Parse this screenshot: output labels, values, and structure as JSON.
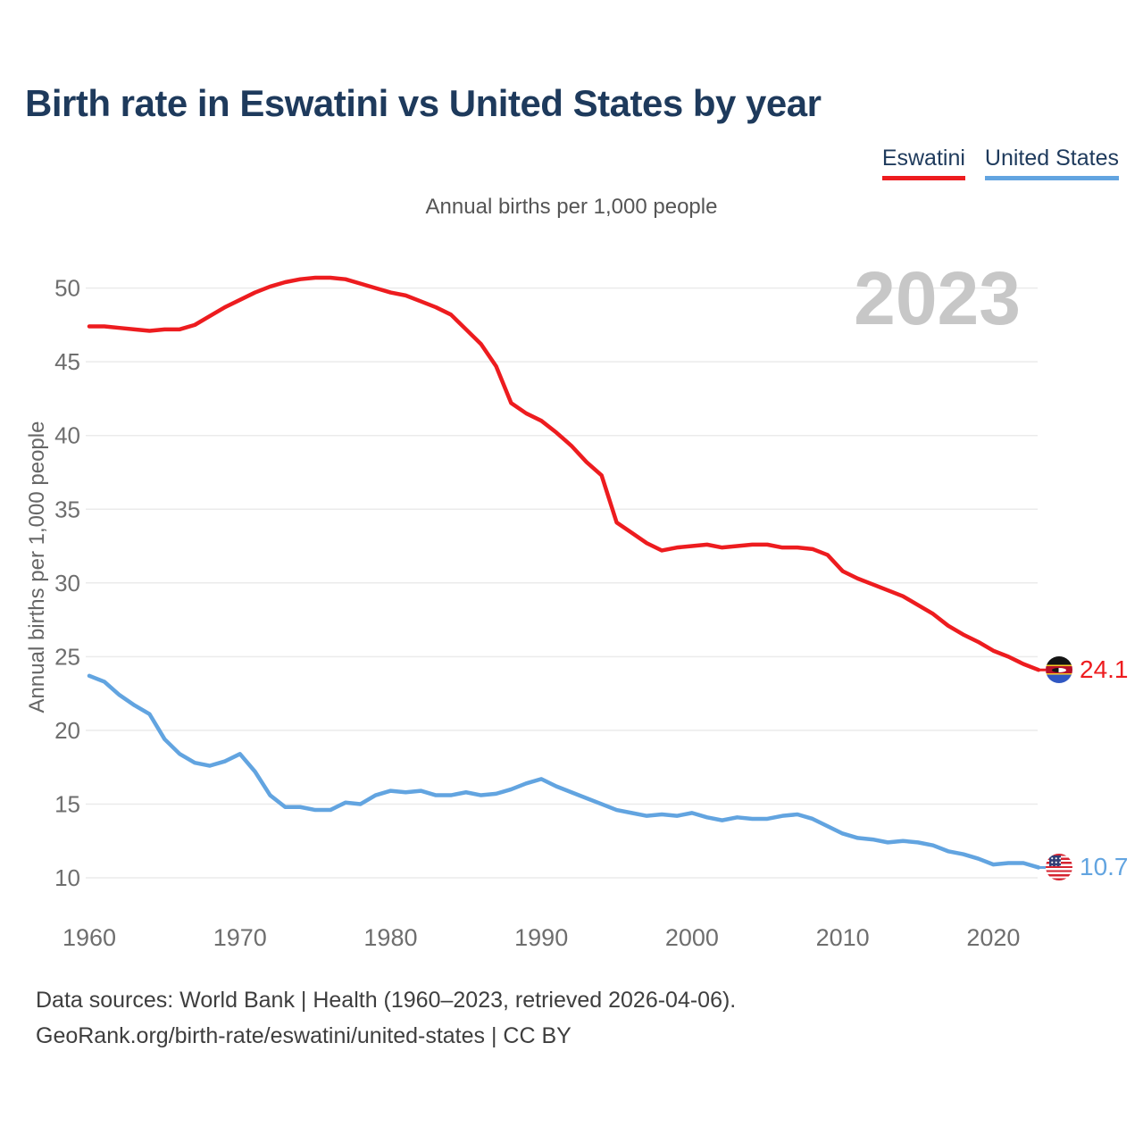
{
  "header": {
    "title": "Birth rate in Eswatini vs United States by year",
    "subtitle": "Annual births per 1,000 people"
  },
  "legend": {
    "items": [
      {
        "label": "Eswatini",
        "color": "#ed1c1f"
      },
      {
        "label": "United States",
        "color": "#62a4e0"
      }
    ]
  },
  "palette": {
    "title_navy": "#1e3a5c",
    "eswatini_red": "#ed1c1f",
    "united_states_blue": "#62a4e0",
    "axis_grey": "#6e6e6e",
    "gridline_grey": "#ebebeb",
    "watermark_grey": "#c7c7c7"
  },
  "chart_data": {
    "type": "line",
    "title": "Birth rate in Eswatini vs United States by year",
    "subtitle": "Annual births per 1,000 people",
    "y_axis_title": "Annual births per 1,000 people",
    "watermark": "2023",
    "grid": "horizontal",
    "legend_position": "top-right",
    "ylim": [
      9.5,
      51.5
    ],
    "yticks": [
      10,
      15,
      20,
      25,
      30,
      35,
      40,
      45,
      50
    ],
    "xticks": [
      1960,
      1970,
      1980,
      1990,
      2000,
      2010,
      2020
    ],
    "x": [
      1960,
      1961,
      1962,
      1963,
      1964,
      1965,
      1966,
      1967,
      1968,
      1969,
      1970,
      1971,
      1972,
      1973,
      1974,
      1975,
      1976,
      1977,
      1978,
      1979,
      1980,
      1981,
      1982,
      1983,
      1984,
      1985,
      1986,
      1987,
      1988,
      1989,
      1990,
      1991,
      1992,
      1993,
      1994,
      1995,
      1996,
      1997,
      1998,
      1999,
      2000,
      2001,
      2002,
      2003,
      2004,
      2005,
      2006,
      2007,
      2008,
      2009,
      2010,
      2011,
      2012,
      2013,
      2014,
      2015,
      2016,
      2017,
      2018,
      2019,
      2020,
      2021,
      2022,
      2023
    ],
    "series": [
      {
        "name": "Eswatini",
        "color": "#ed1c1f",
        "end_label": "24.1",
        "flag_icon": "eswatini-flag-icon",
        "values": [
          47.4,
          47.4,
          47.3,
          47.2,
          47.1,
          47.2,
          47.2,
          47.5,
          48.1,
          48.7,
          49.2,
          49.7,
          50.1,
          50.4,
          50.6,
          50.7,
          50.7,
          50.6,
          50.3,
          50.0,
          49.7,
          49.5,
          49.1,
          48.7,
          48.2,
          47.2,
          46.2,
          44.7,
          42.2,
          41.5,
          41.0,
          40.2,
          39.3,
          38.2,
          37.3,
          34.1,
          33.4,
          32.7,
          32.2,
          32.4,
          32.5,
          32.6,
          32.4,
          32.5,
          32.6,
          32.6,
          32.4,
          32.4,
          32.3,
          31.9,
          30.8,
          30.3,
          29.9,
          29.5,
          29.1,
          28.5,
          27.9,
          27.1,
          26.5,
          26.0,
          25.4,
          25.0,
          24.5,
          24.1
        ]
      },
      {
        "name": "United States",
        "color": "#62a4e0",
        "end_label": "10.7",
        "flag_icon": "us-flag-icon",
        "values": [
          23.7,
          23.3,
          22.4,
          21.7,
          21.1,
          19.4,
          18.4,
          17.8,
          17.6,
          17.9,
          18.4,
          17.2,
          15.6,
          14.8,
          14.8,
          14.6,
          14.6,
          15.1,
          15.0,
          15.6,
          15.9,
          15.8,
          15.9,
          15.6,
          15.6,
          15.8,
          15.6,
          15.7,
          16.0,
          16.4,
          16.7,
          16.2,
          15.8,
          15.4,
          15.0,
          14.6,
          14.4,
          14.2,
          14.3,
          14.2,
          14.4,
          14.1,
          13.9,
          14.1,
          14.0,
          14.0,
          14.2,
          14.3,
          14.0,
          13.5,
          13.0,
          12.7,
          12.6,
          12.4,
          12.5,
          12.4,
          12.2,
          11.8,
          11.6,
          11.3,
          10.9,
          11.0,
          11.0,
          10.7
        ]
      }
    ]
  },
  "footer": {
    "line1": "Data sources: World Bank | Health (1960–2023, retrieved 2026-04-06).",
    "line2": "GeoRank.org/birth-rate/eswatini/united-states | CC BY"
  }
}
